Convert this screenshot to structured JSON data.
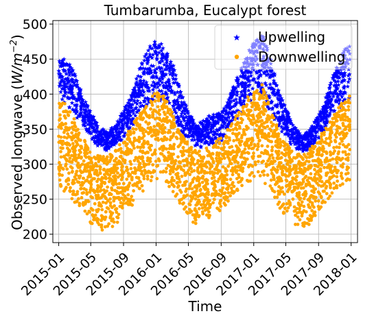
{
  "chart_data": {
    "type": "scatter",
    "title": "Tumbarumba, Eucalypt forest",
    "xlabel": "Time",
    "ylabel_main": "Observed longwave (",
    "ylabel_unit": "W/m",
    "ylabel_sup": "−2",
    "ylabel_close": ")",
    "xlim": [
      "2014-12-10",
      "2018-01-25"
    ],
    "ylim": [
      188,
      505
    ],
    "x_ticks": [
      "2015-01",
      "2015-05",
      "2015-09",
      "2016-01",
      "2016-05",
      "2016-09",
      "2017-01",
      "2017-05",
      "2017-09",
      "2018-01"
    ],
    "y_ticks": [
      200,
      250,
      300,
      350,
      400,
      450,
      500
    ],
    "grid": true,
    "legend_position": "top-right",
    "series": [
      {
        "name": "Upwelling",
        "marker": "star",
        "color": "#0000ff",
        "points_per_month": 55,
        "monthly": [
          {
            "x": "2015-01",
            "low": 375,
            "high": 450
          },
          {
            "x": "2015-02",
            "low": 362,
            "high": 450
          },
          {
            "x": "2015-03",
            "low": 352,
            "high": 430
          },
          {
            "x": "2015-04",
            "low": 338,
            "high": 398
          },
          {
            "x": "2015-05",
            "low": 325,
            "high": 375
          },
          {
            "x": "2015-06",
            "low": 312,
            "high": 355
          },
          {
            "x": "2015-07",
            "low": 310,
            "high": 345
          },
          {
            "x": "2015-08",
            "low": 318,
            "high": 358
          },
          {
            "x": "2015-09",
            "low": 322,
            "high": 378
          },
          {
            "x": "2015-10",
            "low": 335,
            "high": 400
          },
          {
            "x": "2015-11",
            "low": 352,
            "high": 440
          },
          {
            "x": "2015-12",
            "low": 358,
            "high": 465
          },
          {
            "x": "2016-01",
            "low": 362,
            "high": 478
          },
          {
            "x": "2016-02",
            "low": 362,
            "high": 472
          },
          {
            "x": "2016-03",
            "low": 345,
            "high": 448
          },
          {
            "x": "2016-04",
            "low": 330,
            "high": 405
          },
          {
            "x": "2016-05",
            "low": 318,
            "high": 378
          },
          {
            "x": "2016-06",
            "low": 310,
            "high": 355
          },
          {
            "x": "2016-07",
            "low": 310,
            "high": 365
          },
          {
            "x": "2016-08",
            "low": 315,
            "high": 372
          },
          {
            "x": "2016-09",
            "low": 318,
            "high": 372
          },
          {
            "x": "2016-10",
            "low": 335,
            "high": 395
          },
          {
            "x": "2016-11",
            "low": 345,
            "high": 425
          },
          {
            "x": "2016-12",
            "low": 355,
            "high": 455
          },
          {
            "x": "2017-01",
            "low": 365,
            "high": 475
          },
          {
            "x": "2017-02",
            "low": 362,
            "high": 488
          },
          {
            "x": "2017-03",
            "low": 350,
            "high": 458
          },
          {
            "x": "2017-04",
            "low": 335,
            "high": 410
          },
          {
            "x": "2017-05",
            "low": 322,
            "high": 380
          },
          {
            "x": "2017-06",
            "low": 312,
            "high": 355
          },
          {
            "x": "2017-07",
            "low": 308,
            "high": 340
          },
          {
            "x": "2017-08",
            "low": 310,
            "high": 350
          },
          {
            "x": "2017-09",
            "low": 322,
            "high": 370
          },
          {
            "x": "2017-10",
            "low": 335,
            "high": 398
          },
          {
            "x": "2017-11",
            "low": 352,
            "high": 435
          },
          {
            "x": "2017-12",
            "low": 360,
            "high": 462
          },
          {
            "x": "2018-01",
            "low": 365,
            "high": 470
          }
        ]
      },
      {
        "name": "Downwelling",
        "marker": "circle",
        "color": "#ffa500",
        "points_per_month": 70,
        "monthly": [
          {
            "x": "2015-01",
            "low": 262,
            "high": 390
          },
          {
            "x": "2015-02",
            "low": 255,
            "high": 385
          },
          {
            "x": "2015-03",
            "low": 245,
            "high": 365
          },
          {
            "x": "2015-04",
            "low": 230,
            "high": 340
          },
          {
            "x": "2015-05",
            "low": 215,
            "high": 320
          },
          {
            "x": "2015-06",
            "low": 205,
            "high": 312
          },
          {
            "x": "2015-07",
            "low": 205,
            "high": 310
          },
          {
            "x": "2015-08",
            "low": 212,
            "high": 320
          },
          {
            "x": "2015-09",
            "low": 225,
            "high": 335
          },
          {
            "x": "2015-10",
            "low": 240,
            "high": 355
          },
          {
            "x": "2015-11",
            "low": 255,
            "high": 372
          },
          {
            "x": "2015-12",
            "low": 268,
            "high": 388
          },
          {
            "x": "2016-01",
            "low": 278,
            "high": 405
          },
          {
            "x": "2016-02",
            "low": 275,
            "high": 398
          },
          {
            "x": "2016-03",
            "low": 260,
            "high": 375
          },
          {
            "x": "2016-04",
            "low": 240,
            "high": 345
          },
          {
            "x": "2016-05",
            "low": 222,
            "high": 330
          },
          {
            "x": "2016-06",
            "low": 210,
            "high": 318
          },
          {
            "x": "2016-07",
            "low": 218,
            "high": 322
          },
          {
            "x": "2016-08",
            "low": 225,
            "high": 330
          },
          {
            "x": "2016-09",
            "low": 232,
            "high": 340
          },
          {
            "x": "2016-10",
            "low": 245,
            "high": 355
          },
          {
            "x": "2016-11",
            "low": 258,
            "high": 372
          },
          {
            "x": "2016-12",
            "low": 268,
            "high": 392
          },
          {
            "x": "2017-01",
            "low": 275,
            "high": 405
          },
          {
            "x": "2017-02",
            "low": 272,
            "high": 415
          },
          {
            "x": "2017-03",
            "low": 260,
            "high": 385
          },
          {
            "x": "2017-04",
            "low": 240,
            "high": 352
          },
          {
            "x": "2017-05",
            "low": 225,
            "high": 330
          },
          {
            "x": "2017-06",
            "low": 212,
            "high": 318
          },
          {
            "x": "2017-07",
            "low": 208,
            "high": 312
          },
          {
            "x": "2017-08",
            "low": 215,
            "high": 322
          },
          {
            "x": "2017-09",
            "low": 228,
            "high": 338
          },
          {
            "x": "2017-10",
            "low": 245,
            "high": 355
          },
          {
            "x": "2017-11",
            "low": 258,
            "high": 372
          },
          {
            "x": "2017-12",
            "low": 268,
            "high": 390
          },
          {
            "x": "2018-01",
            "low": 275,
            "high": 400
          }
        ]
      }
    ]
  }
}
